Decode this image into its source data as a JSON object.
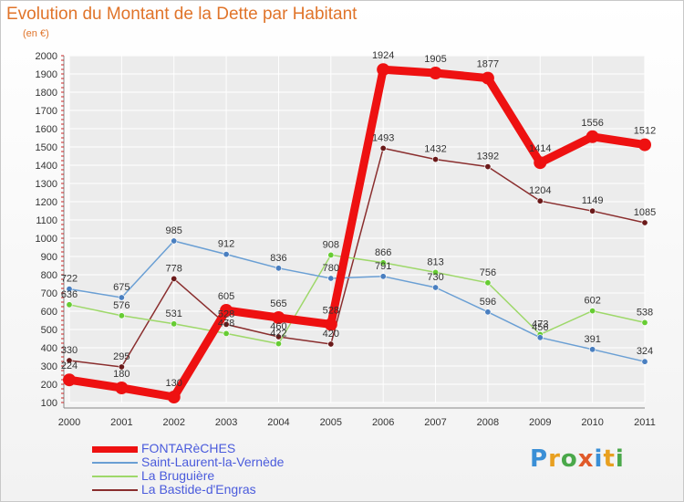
{
  "chart_data": {
    "type": "line",
    "title": "Evolution du Montant de la Dette par Habitant",
    "subtitle": "(en €)",
    "x": [
      "2000",
      "2001",
      "2002",
      "2003",
      "2004",
      "2005",
      "2006",
      "2007",
      "2008",
      "2009",
      "2010",
      "2011"
    ],
    "yticks": [
      100,
      200,
      300,
      400,
      500,
      600,
      700,
      800,
      900,
      1000,
      1100,
      1200,
      1300,
      1400,
      1500,
      1600,
      1700,
      1800,
      1900,
      2000
    ],
    "ylim": [
      100,
      2000
    ],
    "grid": true,
    "legend_position": "bottom-left",
    "series": [
      {
        "name": "FONTARèCHES",
        "color": "#ee1111",
        "bold": true,
        "values": [
          224,
          180,
          130,
          605,
          565,
          528,
          1924,
          1905,
          1877,
          1414,
          1556,
          1512
        ],
        "labels": [
          "224",
          "180",
          "130",
          "605",
          "565",
          "528",
          "1924",
          "1905",
          "1877",
          "1414",
          "1556",
          "1512"
        ]
      },
      {
        "name": "Saint-Laurent-la-Vernède",
        "color": "#6a9fd4",
        "marker": "#4a7fc0",
        "bold": false,
        "values": [
          722,
          675,
          985,
          912,
          836,
          780,
          791,
          730,
          596,
          456,
          391,
          324
        ],
        "labels": [
          "722",
          "675",
          "985",
          "912",
          "836",
          "780",
          "791",
          "730",
          "596",
          "456",
          "391",
          "324"
        ]
      },
      {
        "name": "La Bruguière",
        "color": "#9ed86a",
        "marker": "#66cc33",
        "bold": false,
        "values": [
          636,
          576,
          531,
          478,
          422,
          908,
          866,
          813,
          756,
          473,
          602,
          538
        ],
        "labels": [
          "636",
          "576",
          "531",
          "478",
          "422",
          "908",
          "866",
          "813",
          "756",
          "473",
          "602",
          "538"
        ]
      },
      {
        "name": "La Bastide-d'Engras",
        "color": "#8a2e2e",
        "marker": "#6b1a1a",
        "bold": false,
        "values": [
          330,
          295,
          778,
          528,
          460,
          420,
          1493,
          1432,
          1392,
          1204,
          1149,
          1085
        ],
        "labels": [
          "330",
          "295",
          "778",
          "528",
          "460",
          "420",
          "1493",
          "1432",
          "1392",
          "1204",
          "1149",
          "1085"
        ]
      }
    ]
  },
  "branding": {
    "logo_text": "Proxiti"
  }
}
